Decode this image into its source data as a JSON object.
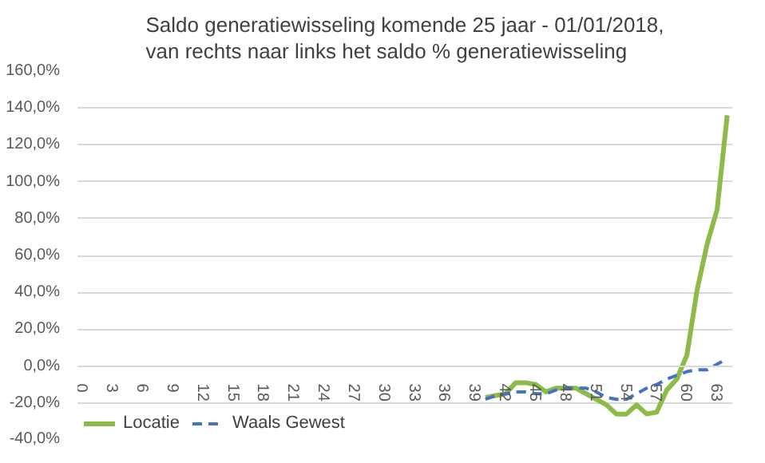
{
  "chart_data": {
    "type": "line",
    "title": "Saldo generatiewisseling komende 25 jaar - 01/01/2018,\nvan rechts naar links  het saldo % generatiewisseling",
    "categories": [
      "0",
      null,
      null,
      "3",
      null,
      null,
      "6",
      null,
      null,
      "9",
      null,
      null,
      "12",
      null,
      null,
      "15",
      null,
      null,
      "18",
      null,
      null,
      "21",
      null,
      null,
      "24",
      null,
      null,
      "27",
      null,
      null,
      "30",
      null,
      null,
      "33",
      null,
      null,
      "36",
      null,
      null,
      "39",
      null,
      null,
      "42",
      null,
      null,
      "45",
      null,
      null,
      "48",
      null,
      null,
      "51",
      null,
      null,
      "54",
      null,
      null,
      "57",
      null,
      null,
      "60",
      null,
      null,
      "63",
      null
    ],
    "series": [
      {
        "name": "Locatie",
        "color": "#8cbb4a",
        "line_style": "solid",
        "values": [
          null,
          null,
          null,
          null,
          null,
          null,
          null,
          null,
          null,
          null,
          null,
          null,
          null,
          null,
          null,
          null,
          null,
          null,
          null,
          null,
          null,
          null,
          null,
          null,
          null,
          null,
          null,
          null,
          null,
          null,
          null,
          null,
          null,
          null,
          null,
          null,
          null,
          null,
          null,
          null,
          -17,
          -16,
          -15,
          -9,
          -9,
          -10,
          -14,
          -12,
          -12,
          -12,
          -15,
          -18,
          -21,
          -26,
          -26,
          -21,
          -26,
          -25,
          -13,
          -7,
          6,
          41,
          66,
          85,
          136
        ]
      },
      {
        "name": "Waals Gewest",
        "color": "#4472c4",
        "line_style": "dashed",
        "values": [
          null,
          null,
          null,
          null,
          null,
          null,
          null,
          null,
          null,
          null,
          null,
          null,
          null,
          null,
          null,
          null,
          null,
          null,
          null,
          null,
          null,
          null,
          null,
          null,
          null,
          null,
          null,
          null,
          null,
          null,
          null,
          null,
          null,
          null,
          null,
          null,
          null,
          null,
          null,
          null,
          -18,
          -16,
          -15,
          -14,
          -14,
          -15,
          -15,
          -13,
          -12,
          -12,
          -12,
          -14,
          -17,
          -18,
          -18,
          -15,
          -12,
          -10,
          -7,
          -5,
          -3,
          -2,
          -2,
          1,
          4
        ]
      }
    ],
    "ylim": [
      -40,
      160
    ],
    "yticks": [
      {
        "value": -40,
        "label": "-40,0%"
      },
      {
        "value": -20,
        "label": "-20,0%"
      },
      {
        "value": 0,
        "label": "0,0%"
      },
      {
        "value": 20,
        "label": "20,0%"
      },
      {
        "value": 40,
        "label": "40,0%"
      },
      {
        "value": 60,
        "label": "60,0%"
      },
      {
        "value": 80,
        "label": "80,0%"
      },
      {
        "value": 100,
        "label": "100,0%"
      },
      {
        "value": 120,
        "label": "120,0%"
      },
      {
        "value": 140,
        "label": "140,0%"
      },
      {
        "value": 160,
        "label": "160,0%"
      }
    ],
    "grid": "y",
    "legend": "bottom left"
  }
}
